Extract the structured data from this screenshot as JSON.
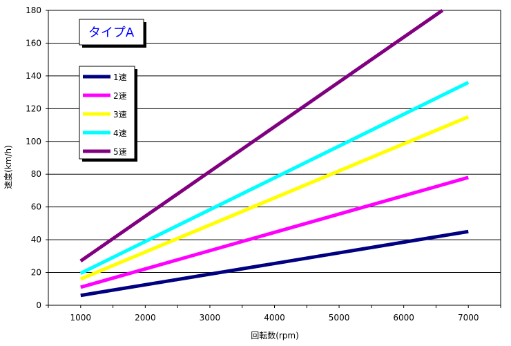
{
  "chart_data": {
    "type": "line",
    "title": "タイプA",
    "xlabel": "回転数(rpm)",
    "ylabel": "速度(km/h)",
    "x": [
      1000,
      7000
    ],
    "xticks": [
      1000,
      2000,
      3000,
      4000,
      5000,
      6000,
      7000
    ],
    "xlim": [
      500,
      7500
    ],
    "ylim": [
      0,
      180
    ],
    "yticks": [
      0,
      20,
      40,
      60,
      80,
      100,
      120,
      140,
      160,
      180
    ],
    "grid": "horizontal",
    "legend_position": "upper-left",
    "series": [
      {
        "name": "1速",
        "color": "#000080",
        "x": [
          1000,
          7000
        ],
        "y": [
          6,
          45
        ]
      },
      {
        "name": "2速",
        "color": "#ff00ff",
        "x": [
          1000,
          7000
        ],
        "y": [
          11,
          78
        ]
      },
      {
        "name": "3速",
        "color": "#ffff00",
        "x": [
          1000,
          7000
        ],
        "y": [
          16,
          115
        ]
      },
      {
        "name": "4速",
        "color": "#00ffff",
        "x": [
          1000,
          7000
        ],
        "y": [
          19.5,
          136
        ]
      },
      {
        "name": "5速",
        "color": "#800080",
        "x": [
          1000,
          6600
        ],
        "y": [
          27,
          180
        ]
      }
    ]
  }
}
